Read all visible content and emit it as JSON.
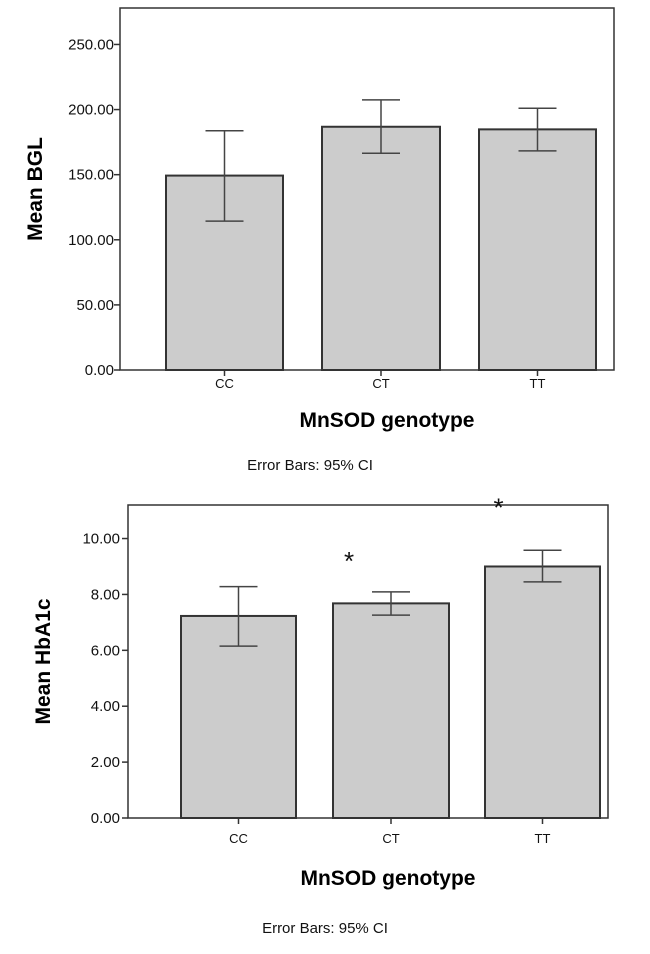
{
  "chart_data": [
    {
      "type": "bar",
      "title": "",
      "xlabel": "MnSOD genotype",
      "ylabel": "Mean BGL",
      "categories": [
        "CC",
        "CT",
        "TT"
      ],
      "values": [
        149.3,
        186.8,
        184.8
      ],
      "error_upper": [
        183.7,
        207.4,
        201.0
      ],
      "error_lower": [
        114.3,
        166.5,
        168.3
      ],
      "yticks": [
        "0.00",
        "50.00",
        "100.00",
        "150.00",
        "200.00",
        "250.00"
      ],
      "ylim": [
        0,
        278
      ],
      "annotations": [],
      "footnote": "Error Bars: 95% CI",
      "bar_color": "#cccccc"
    },
    {
      "type": "bar",
      "title": "",
      "xlabel": "MnSOD genotype",
      "ylabel": "Mean HbA1c",
      "categories": [
        "CC",
        "CT",
        "TT"
      ],
      "values": [
        7.23,
        7.68,
        9.0
      ],
      "error_upper": [
        8.28,
        8.09,
        9.58
      ],
      "error_lower": [
        6.15,
        7.26,
        8.45
      ],
      "yticks": [
        "0.00",
        "2.00",
        "4.00",
        "6.00",
        "8.00",
        "10.00"
      ],
      "ylim": [
        0,
        11.2
      ],
      "annotations": [
        "",
        "*",
        "*"
      ],
      "footnote": "Error Bars: 95% CI",
      "bar_color": "#cccccc"
    }
  ]
}
